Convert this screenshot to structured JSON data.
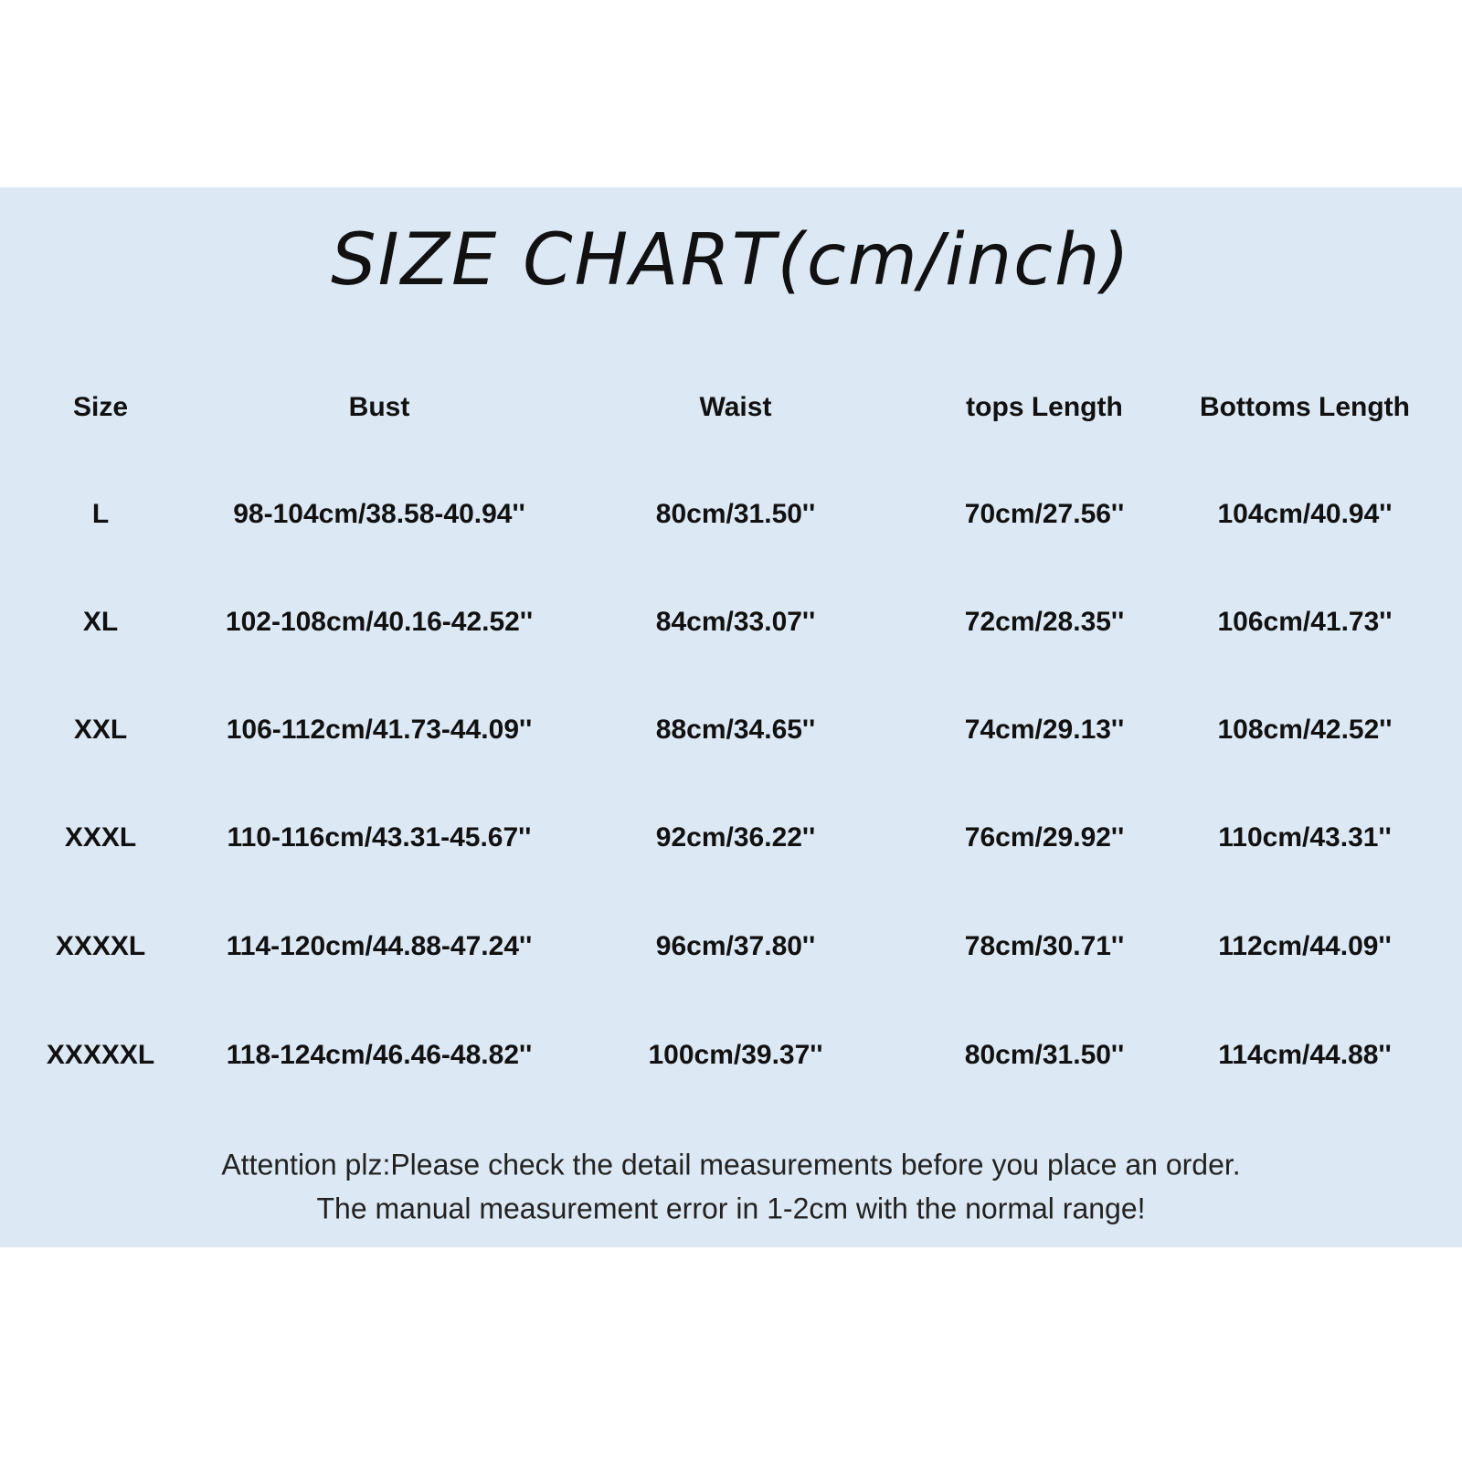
{
  "title": "SIZE CHART(cm/inch)",
  "table": {
    "headers": [
      "Size",
      "Bust",
      "Waist",
      "tops Length",
      "Bottoms Length"
    ],
    "rows": [
      [
        "L",
        "98-104cm/38.58-40.94''",
        "80cm/31.50''",
        "70cm/27.56''",
        "104cm/40.94''"
      ],
      [
        "XL",
        "102-108cm/40.16-42.52''",
        "84cm/33.07''",
        "72cm/28.35''",
        "106cm/41.73''"
      ],
      [
        "XXL",
        "106-112cm/41.73-44.09''",
        "88cm/34.65''",
        "74cm/29.13''",
        "108cm/42.52''"
      ],
      [
        "XXXL",
        "110-116cm/43.31-45.67''",
        "92cm/36.22''",
        "76cm/29.92''",
        "110cm/43.31''"
      ],
      [
        "XXXXL",
        "114-120cm/44.88-47.24''",
        "96cm/37.80''",
        "78cm/30.71''",
        "112cm/44.09''"
      ],
      [
        "XXXXXL",
        "118-124cm/46.46-48.82''",
        "100cm/39.37''",
        "80cm/31.50''",
        "114cm/44.88''"
      ]
    ]
  },
  "notes": [
    "Attention plz:Please check the detail measurements before you place an order.",
    "The manual measurement error in 1-2cm with the normal range!"
  ],
  "colors": {
    "background_band": "#dce9f5",
    "text": "#111111"
  }
}
